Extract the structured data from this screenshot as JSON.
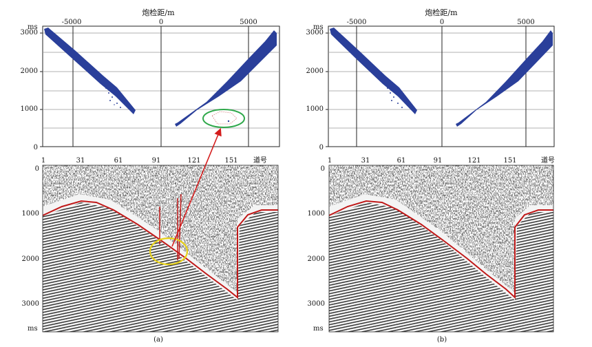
{
  "panels": [
    {
      "id": "a",
      "caption": "(a)",
      "top_plot": {
        "x_axis_title": "炮检距/m",
        "x_ticks": [
          "-5000",
          "0",
          "5000"
        ],
        "y_unit": "ms",
        "y_ticks": [
          "3000",
          "2000",
          "1000",
          "0"
        ]
      },
      "gather": {
        "trace_ticks": [
          "1",
          "31",
          "61",
          "91",
          "121",
          "151"
        ],
        "trace_unit": "道号",
        "time_ticks": [
          "0",
          "1000",
          "2000",
          "3000"
        ],
        "time_unit": "ms"
      },
      "annotations": [
        "green-ellipse",
        "yellow-circle",
        "red-arrow",
        "red-spikes"
      ]
    },
    {
      "id": "b",
      "caption": "(b)",
      "top_plot": {
        "x_axis_title": "炮检距/m",
        "x_ticks": [
          "-5000",
          "0",
          "5000"
        ],
        "y_unit": "ms",
        "y_ticks": [
          "3000",
          "2000",
          "1000",
          "0"
        ]
      },
      "gather": {
        "trace_ticks": [
          "1",
          "31",
          "61",
          "91",
          "121",
          "151"
        ],
        "trace_unit": "道号",
        "time_ticks": [
          "0",
          "1000",
          "2000",
          "3000"
        ],
        "time_unit": "ms"
      }
    }
  ],
  "colors": {
    "scatter": "#2a3f9a",
    "pick_line": "#c01818",
    "annotation_green": "#2fa84a",
    "annotation_yellow": "#e8d21a",
    "arrow": "#d41c1c"
  }
}
